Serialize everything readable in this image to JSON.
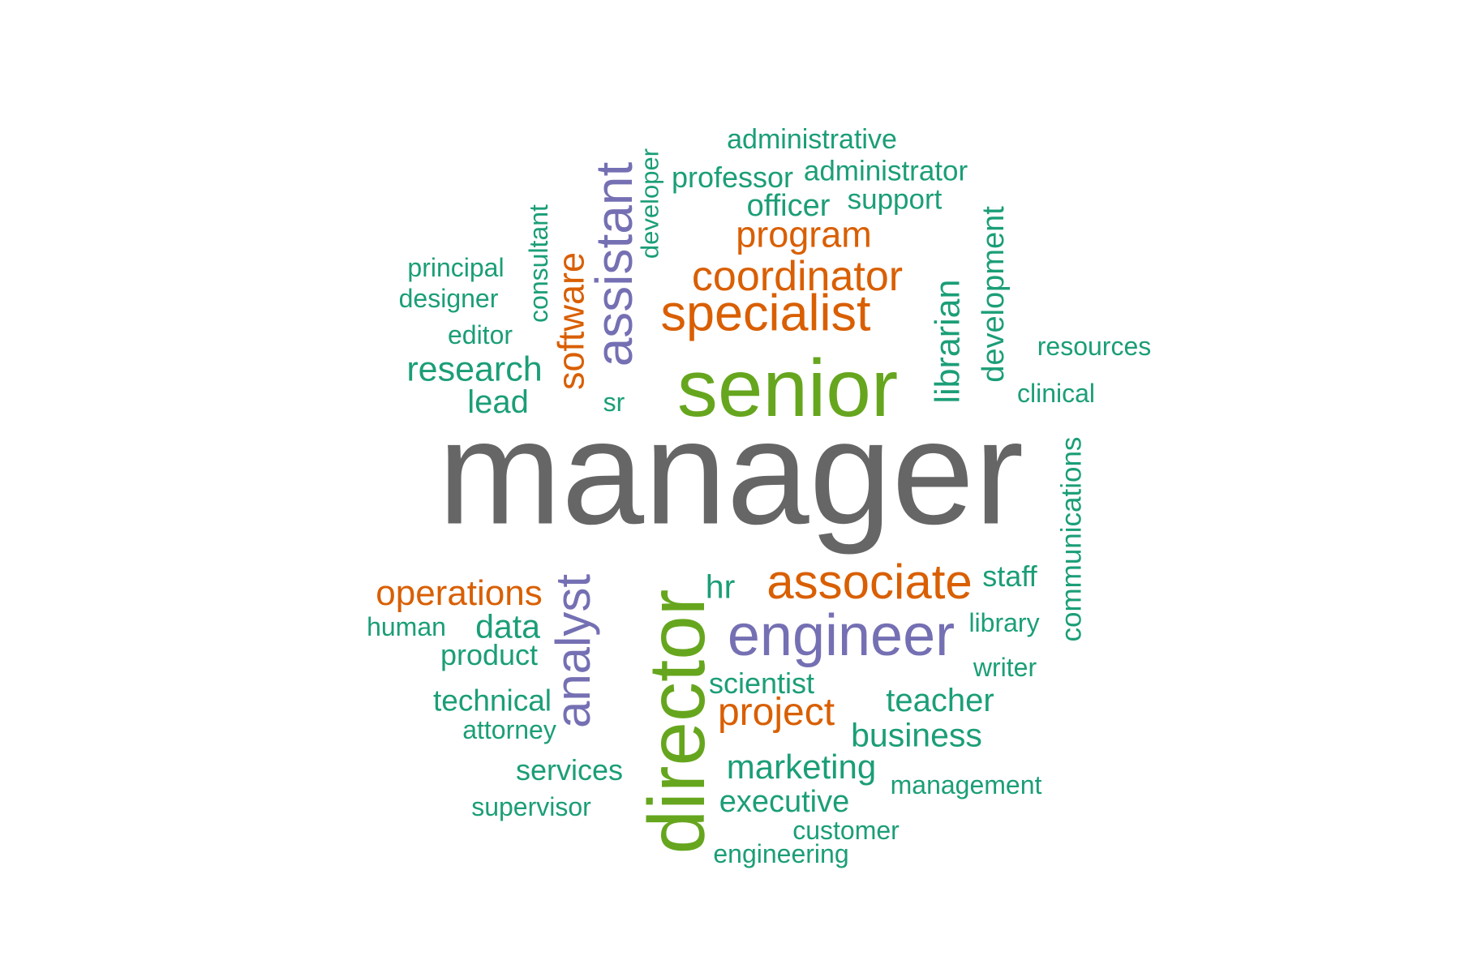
{
  "colors": {
    "gray": "#666666",
    "green": "#66a61e",
    "orange": "#d95f02",
    "purple": "#7570b3",
    "teal": "#1b9e77"
  },
  "words": {
    "manager": "manager",
    "senior": "senior",
    "director": "director",
    "specialist": "specialist",
    "coordinator": "coordinator",
    "program": "program",
    "assistant": "assistant",
    "software": "software",
    "consultant": "consultant",
    "developer": "developer",
    "administrative": "administrative",
    "professor": "professor",
    "administrator": "administrator",
    "officer": "officer",
    "support": "support",
    "principal": "principal",
    "designer": "designer",
    "editor": "editor",
    "research": "research",
    "lead": "lead",
    "sr": "sr",
    "librarian": "librarian",
    "development": "development",
    "resources": "resources",
    "clinical": "clinical",
    "communications": "communications",
    "associate": "associate",
    "staff": "staff",
    "engineer": "engineer",
    "library": "library",
    "writer": "writer",
    "hr": "hr",
    "analyst": "analyst",
    "operations": "operations",
    "human": "human",
    "data": "data",
    "product": "product",
    "technical": "technical",
    "attorney": "attorney",
    "scientist": "scientist",
    "project": "project",
    "teacher": "teacher",
    "business": "business",
    "services": "services",
    "marketing": "marketing",
    "management": "management",
    "supervisor": "supervisor",
    "executive": "executive",
    "customer": "customer",
    "engineering": "engineering"
  }
}
